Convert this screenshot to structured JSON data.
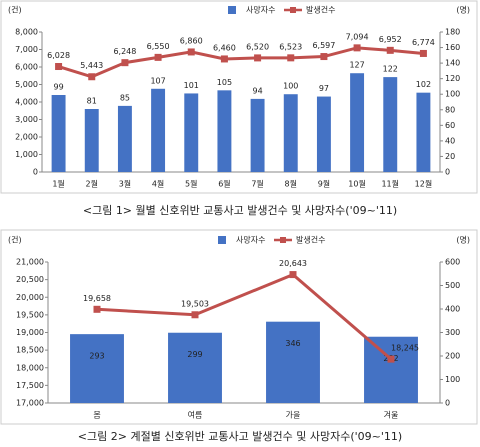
{
  "chart_data": [
    {
      "type": "bar_line",
      "caption": "<그림 1> 월별 신호위반 교통사고 발생건수 및 사망자수('09~'11)",
      "y_unit": "(건)",
      "y2_unit": "(명)",
      "categories": [
        "1월",
        "2월",
        "3월",
        "4월",
        "5월",
        "6월",
        "7월",
        "8월",
        "9월",
        "10월",
        "11월",
        "12월"
      ],
      "series": [
        {
          "name": "사망자수",
          "type": "bar",
          "axis": "y2",
          "color": "#4472c4",
          "values": [
            99,
            81,
            85,
            107,
            101,
            105,
            94,
            100,
            97,
            127,
            122,
            102
          ]
        },
        {
          "name": "발생건수",
          "type": "line",
          "color": "#c0504d",
          "values": [
            6028,
            5443,
            6248,
            6550,
            6860,
            6460,
            6520,
            6523,
            6597,
            7094,
            6952,
            6774
          ],
          "value_labels": [
            "6,028",
            "5,443",
            "6,248",
            "6,550",
            "6,860",
            "6,460",
            "6,520",
            "6,523",
            "6,597",
            "7,094",
            "6,952",
            "6,774"
          ]
        }
      ],
      "ylim": [
        0,
        8000
      ],
      "yticks": [
        0,
        {
          "value": 1000,
          "label": "1,000"
        },
        {
          "value": 2000,
          "label": "2,000"
        },
        {
          "value": 3000,
          "label": "3,000"
        },
        {
          "value": 4000,
          "label": "4,000"
        },
        {
          "value": 5000,
          "label": "5,000"
        },
        {
          "value": 6000,
          "label": "6,000"
        },
        {
          "value": 7000,
          "label": "7,000"
        },
        {
          "value": 8000,
          "label": "8,000"
        }
      ],
      "y2lim": [
        0,
        180
      ],
      "y2ticks": [
        0,
        20,
        40,
        60,
        80,
        100,
        120,
        140,
        160,
        180
      ],
      "grid": false
    },
    {
      "type": "bar_line",
      "caption": "<그림 2> 계절별 신호위반 교통사고 발생건수 및 사망자수('09~'11)",
      "y_unit": "(건)",
      "y2_unit": "(명)",
      "categories": [
        "봄",
        "여름",
        "가을",
        "겨울"
      ],
      "series": [
        {
          "name": "사망자수",
          "type": "bar",
          "axis": "y2",
          "color": "#4472c4",
          "values": [
            293,
            299,
            346,
            282
          ]
        },
        {
          "name": "발생건수",
          "type": "line",
          "color": "#c0504d",
          "values": [
            19658,
            19503,
            20643,
            18245
          ],
          "value_labels": [
            "19,658",
            "19,503",
            "20,643",
            "18,245"
          ]
        }
      ],
      "ylim": [
        17000,
        21000
      ],
      "yticks": [
        {
          "value": 17000,
          "label": "17,000"
        },
        {
          "value": 17500,
          "label": "17,500"
        },
        {
          "value": 18000,
          "label": "18,000"
        },
        {
          "value": 18500,
          "label": "18,500"
        },
        {
          "value": 19000,
          "label": "19,000"
        },
        {
          "value": 19500,
          "label": "19,500"
        },
        {
          "value": 20000,
          "label": "20,000"
        },
        {
          "value": 20500,
          "label": "20,500"
        },
        {
          "value": 21000,
          "label": "21,000"
        }
      ],
      "y2lim": [
        0,
        600
      ],
      "y2ticks": [
        0,
        100,
        200,
        300,
        400,
        500,
        600
      ],
      "grid": false
    }
  ]
}
